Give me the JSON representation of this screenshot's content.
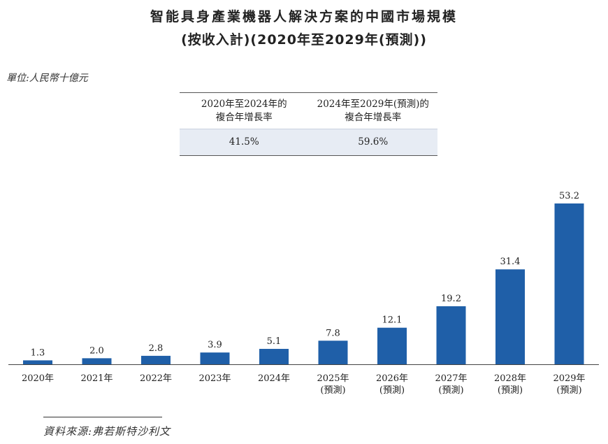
{
  "title_line1": "智能具身產業機器人解決方案的中國市場規模",
  "title_line2": "(按收入計)(2020年至2029年(預測))",
  "unit": "單位:人民幣十億元",
  "cagr": {
    "headers": [
      [
        "2020年至2024年的",
        "複合年增長率"
      ],
      [
        "2024年至2029年(預測)的",
        "複合年增長率"
      ]
    ],
    "values": [
      "41.5%",
      "59.6%"
    ]
  },
  "source": "資料來源:弗若斯特沙利文",
  "colors": {
    "bar": "#1f5fa8",
    "table_fill": "#e7ecf4"
  },
  "chart_data": {
    "type": "bar",
    "categories": [
      [
        "2020年"
      ],
      [
        "2021年"
      ],
      [
        "2022年"
      ],
      [
        "2023年"
      ],
      [
        "2024年"
      ],
      [
        "2025年",
        "(預測)"
      ],
      [
        "2026年",
        "(預測)"
      ],
      [
        "2027年",
        "(預測)"
      ],
      [
        "2028年",
        "(預測)"
      ],
      [
        "2029年",
        "(預測)"
      ]
    ],
    "values": [
      1.3,
      2.0,
      2.8,
      3.9,
      5.1,
      7.8,
      12.1,
      19.2,
      31.4,
      53.2
    ],
    "value_labels": [
      "1.3",
      "2.0",
      "2.8",
      "3.9",
      "5.1",
      "7.8",
      "12.1",
      "19.2",
      "31.4",
      "53.2"
    ],
    "title": "智能具身產業機器人解決方案的中國市場規模",
    "ylim": [
      0,
      53.2
    ],
    "grid": false,
    "data_labels": true
  }
}
